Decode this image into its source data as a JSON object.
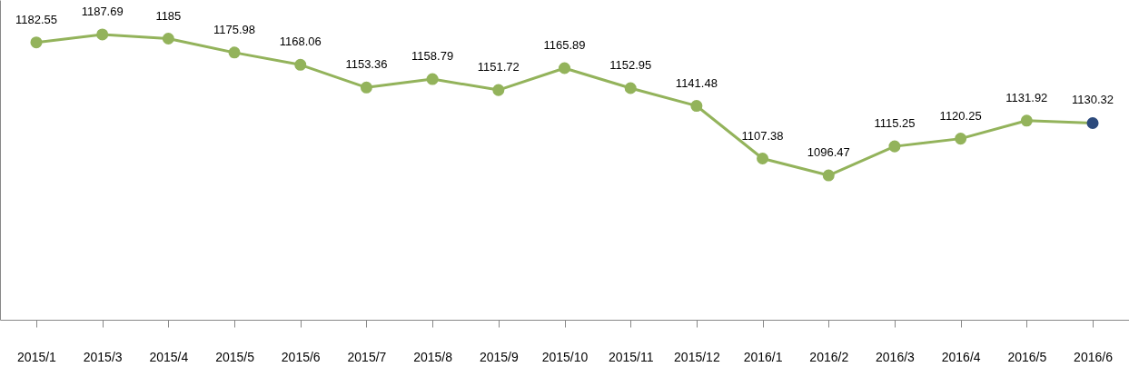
{
  "chart_data": {
    "type": "line",
    "categories": [
      "2015/1",
      "2015/3",
      "2015/4",
      "2015/5",
      "2015/6",
      "2015/7",
      "2015/8",
      "2015/9",
      "2015/10",
      "2015/11",
      "2015/12",
      "2016/1",
      "2016/2",
      "2016/3",
      "2016/4",
      "2016/5",
      "2016/6"
    ],
    "series": [
      {
        "color": "#93b35b",
        "colors": [
          "#93b35b",
          "#93b35b",
          "#93b35b",
          "#93b35b",
          "#93b35b",
          "#93b35b",
          "#93b35b",
          "#93b35b",
          "#93b35b",
          "#93b35b",
          "#93b35b",
          "#93b35b",
          "#93b35b",
          "#93b35b",
          "#93b35b",
          "#93b35b",
          "#2c4a7c"
        ],
        "values": [
          1182.55,
          1187.69,
          1185,
          1175.98,
          1168.06,
          1153.36,
          1158.79,
          1151.72,
          1165.89,
          1152.95,
          1141.48,
          1107.38,
          1096.47,
          1115.25,
          1120.25,
          1131.92,
          1130.32
        ]
      }
    ],
    "ylim": [
      1003,
      1210
    ],
    "data_labels": true,
    "marker": "circle"
  }
}
